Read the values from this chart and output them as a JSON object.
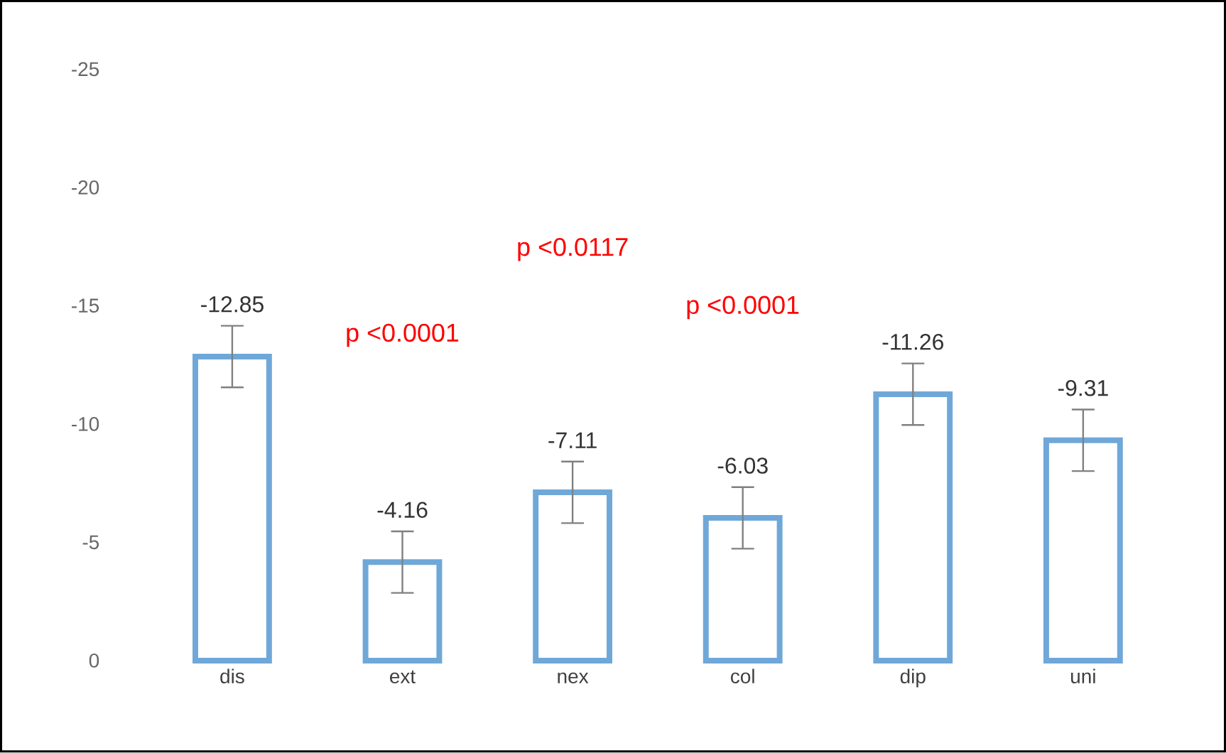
{
  "chart_data": {
    "type": "bar",
    "categories": [
      "dis",
      "ext",
      "nex",
      "col",
      "dip",
      "uni"
    ],
    "values": [
      -12.85,
      -4.16,
      -7.11,
      -6.03,
      -11.26,
      -9.31
    ],
    "errors": [
      1.3,
      1.3,
      1.3,
      1.3,
      1.3,
      1.3
    ],
    "value_labels": [
      "-12.85",
      "-4.16",
      "-7.11",
      "-6.03",
      "-11.26",
      "-9.31"
    ],
    "color": "#6fa8d8",
    "ylim": [
      0,
      -25
    ],
    "yticks": [
      0,
      -5,
      -10,
      -15,
      -20,
      -25
    ],
    "grid": false,
    "annotations": [
      "p <0.0001",
      "p <0.0117",
      "p <0.0001"
    ]
  }
}
